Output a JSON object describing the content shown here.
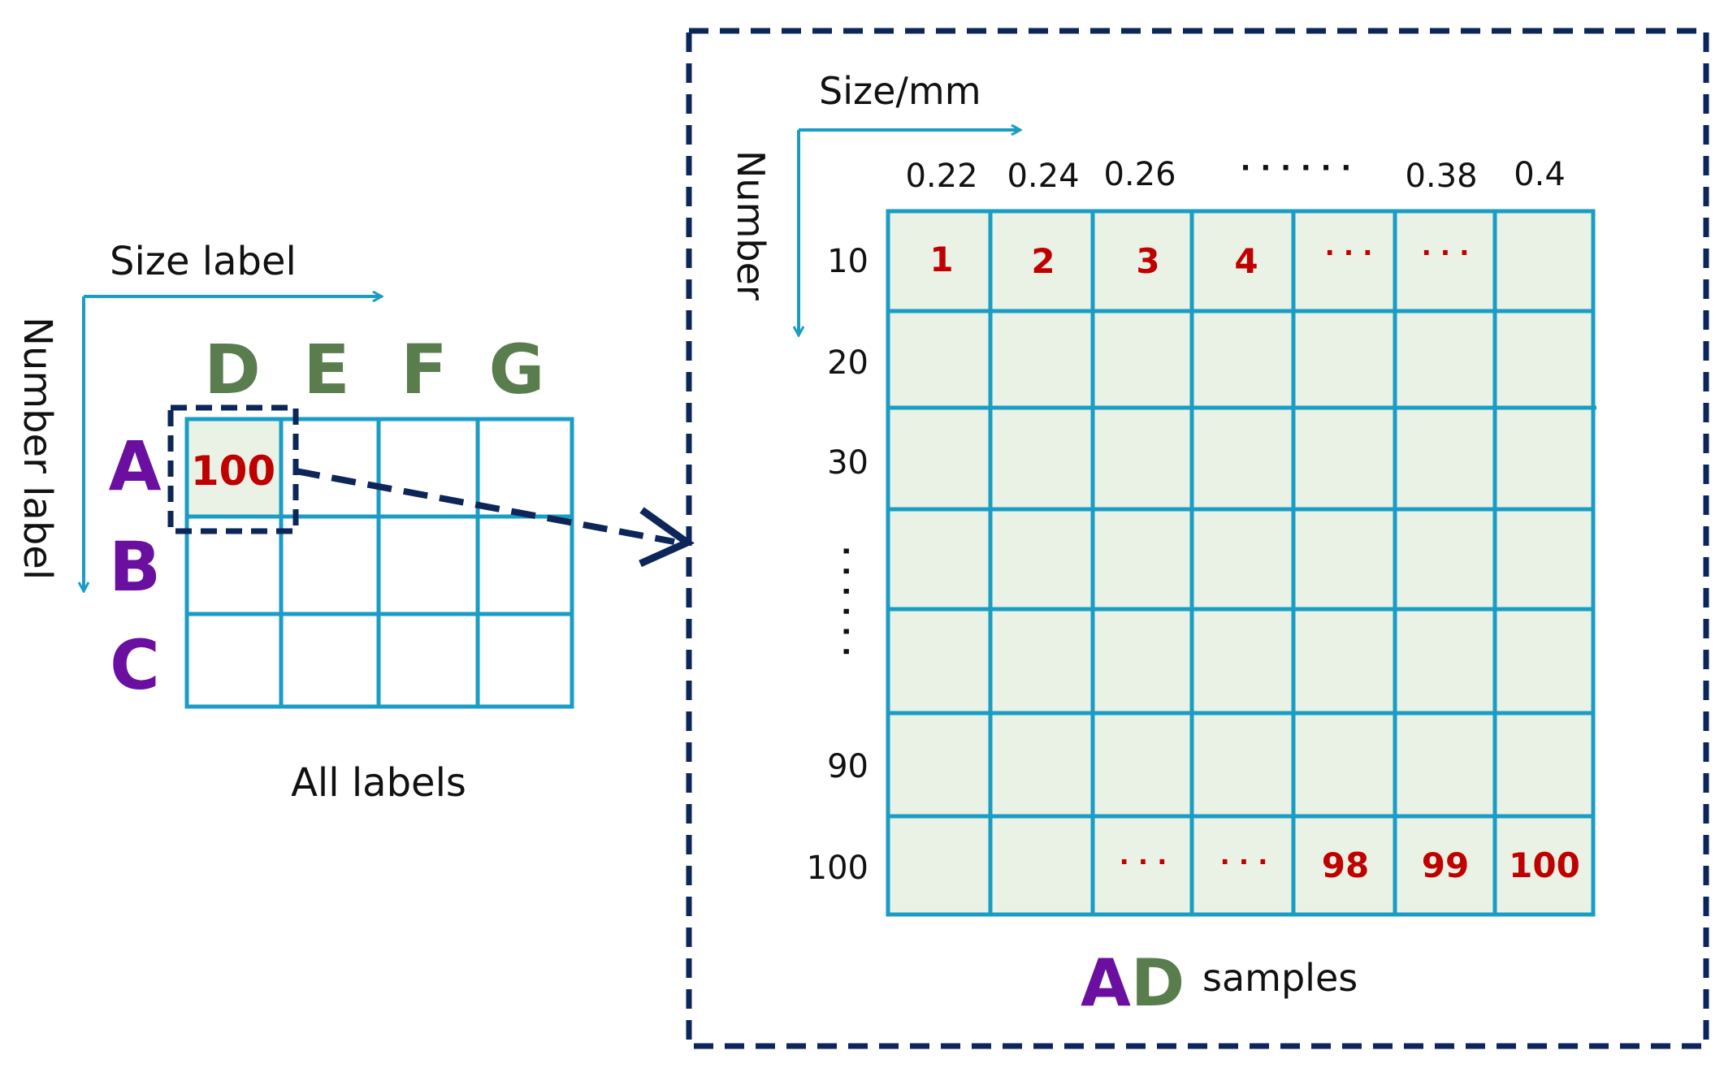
{
  "left_panel": {
    "size_axis_label": "Size label",
    "number_axis_label": "Number label",
    "column_labels": [
      "D",
      "E",
      "F",
      "G"
    ],
    "row_labels": [
      "A",
      "B",
      "C"
    ],
    "highlighted_cell_value": "100",
    "caption": "All labels"
  },
  "right_panel": {
    "size_axis_label": "Size/mm",
    "number_axis_label": "Number",
    "size_ticks": [
      "0.22",
      "0.24",
      "0.26",
      "· · · · · ·",
      "0.38",
      "0.4"
    ],
    "number_ticks": [
      "10",
      "20",
      "30",
      "· · · · · ·",
      "90",
      "100"
    ],
    "first_row_values": [
      "1",
      "2",
      "3",
      "4",
      "· · ·",
      "· · ·",
      ""
    ],
    "last_row_values": [
      "",
      "",
      "· · ·",
      "· · ·",
      "98",
      "99",
      "100"
    ],
    "caption_prefix_a": "A",
    "caption_prefix_d": "D",
    "caption_suffix": "samples"
  },
  "colors": {
    "grid": "#1a9dc4",
    "cell_fill": "#e9f2e4",
    "dashed_border": "#0d2659",
    "row_label": "#6a0fa0",
    "column_label": "#5a7d4e",
    "cell_value": "#c00000",
    "text": "#111111"
  }
}
